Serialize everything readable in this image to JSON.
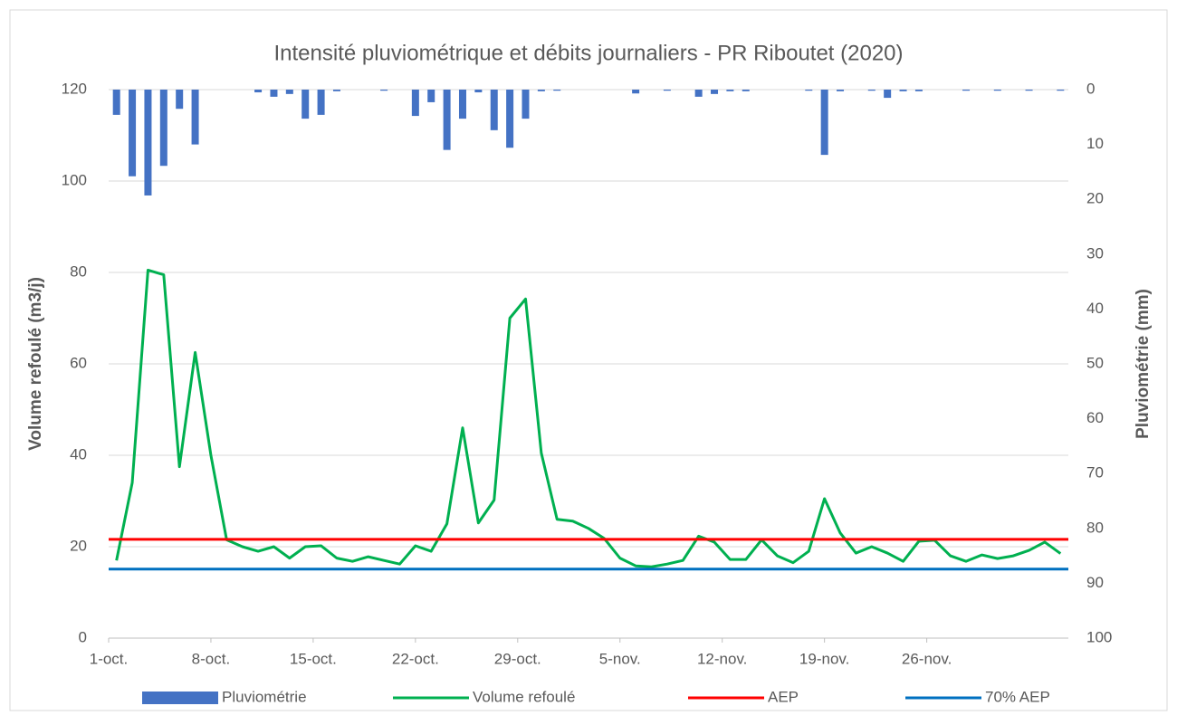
{
  "chart_data": {
    "type": "combo",
    "title": "Intensité pluviométrique et débits journaliers - PR Riboutet (2020)",
    "y_label": "Volume refoulé (m3/j)",
    "y2_label": "Pluviométrie (mm)",
    "x": [
      0.5,
      1.5,
      2.5,
      3.5,
      4.5,
      5.5,
      6.5,
      7.5,
      8.5,
      9.5,
      10.5,
      11.5,
      12.5,
      13.5,
      14.5,
      15.5,
      16.5,
      17.5,
      18.5,
      19.5,
      20.5,
      21.5,
      22.5,
      23.5,
      24.5,
      25.5,
      26.5,
      27.5,
      28.5,
      29.5,
      30.5,
      31.5,
      32.5,
      33.5,
      34.5,
      35.5,
      36.5,
      37.5,
      38.5,
      39.5,
      40.5,
      41.5,
      42.5,
      43.5,
      44.5,
      45.5,
      46.5,
      47.5,
      48.5,
      49.5,
      50.5,
      51.5,
      52.5,
      53.5,
      54.5,
      55.5,
      56.5,
      57.5,
      58.5,
      59.5,
      60.5
    ],
    "xlim": [
      0,
      61
    ],
    "xticks": [
      {
        "value": 0,
        "label": "1-oct."
      },
      {
        "value": 6.5,
        "label": "8-oct."
      },
      {
        "value": 13,
        "label": "15-oct."
      },
      {
        "value": 19.5,
        "label": "22-oct."
      },
      {
        "value": 26,
        "label": "29-oct."
      },
      {
        "value": 32.5,
        "label": "5-nov."
      },
      {
        "value": 39,
        "label": "12-nov."
      },
      {
        "value": 45.5,
        "label": "19-nov."
      },
      {
        "value": 52,
        "label": "26-nov."
      }
    ],
    "ylim": [
      0,
      120
    ],
    "yticks": [
      0,
      20,
      40,
      60,
      80,
      100,
      120
    ],
    "y2lim": [
      0,
      100
    ],
    "y2ticks": [
      0,
      10,
      20,
      30,
      40,
      50,
      60,
      70,
      80,
      90,
      100
    ],
    "y2_inverted": true,
    "grid": true,
    "legend": "bottom",
    "series": [
      {
        "name": "Pluviométrie",
        "type": "bar",
        "axis": "y2",
        "color": "#4472c4",
        "values": [
          4.6,
          15.8,
          19.3,
          13.9,
          3.5,
          10,
          0,
          0,
          0,
          0.5,
          1.3,
          0.8,
          5.3,
          4.6,
          0.3,
          0,
          0,
          0.2,
          0,
          4.8,
          2.3,
          11,
          5.3,
          0.5,
          7.4,
          10.6,
          5.3,
          0.3,
          0.2,
          0,
          0,
          0,
          0,
          0.7,
          0,
          0.2,
          0,
          1.3,
          0.8,
          0.3,
          0.3,
          0,
          0,
          0,
          0.2,
          11.9,
          0.3,
          0,
          0.2,
          1.5,
          0.3,
          0.3,
          0,
          0,
          0.2,
          0,
          0.2,
          0,
          0.2,
          0,
          0.2
        ]
      },
      {
        "name": "Volume refoulé",
        "type": "line",
        "color": "#00b050",
        "values": [
          17,
          34,
          80.5,
          79.5,
          37.5,
          62.5,
          40,
          21.5,
          20,
          19,
          20,
          17.5,
          20,
          20.2,
          17.5,
          16.8,
          17.8,
          17,
          16.2,
          20.2,
          19,
          25,
          46,
          25.2,
          30.2,
          70,
          74.2,
          40.5,
          26,
          25.6,
          24,
          21.8,
          17.5,
          15.8,
          15.6,
          16.2,
          17,
          22.3,
          21,
          17.2,
          17.2,
          21.5,
          18,
          16.5,
          19,
          30.5,
          23,
          18.6,
          20,
          18.6,
          16.8,
          21.2,
          21.4,
          18,
          16.8,
          18.2,
          17.4,
          18,
          19.2,
          21,
          18.5
        ]
      },
      {
        "name": "AEP",
        "type": "hline",
        "color": "#ff0000",
        "value": 21.6
      },
      {
        "name": "70% AEP",
        "type": "hline",
        "color": "#0070c0",
        "value": 15.1
      }
    ]
  }
}
